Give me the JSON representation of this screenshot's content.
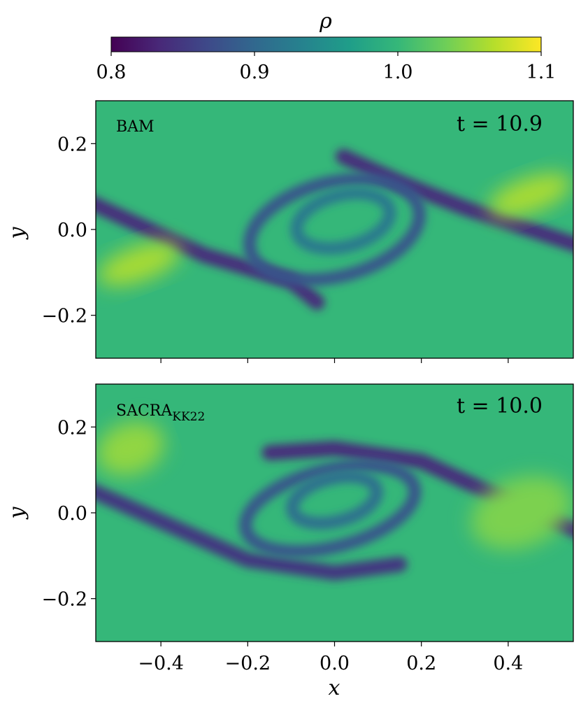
{
  "chart_data": {
    "type": "heatmap",
    "figure": "density field, two stacked panels sharing x-axis",
    "colorbar": {
      "label": "ρ",
      "colormap": "viridis",
      "range": [
        0.8,
        1.1
      ],
      "ticks": [
        0.8,
        0.9,
        1.0,
        1.1
      ],
      "tick_labels": [
        "0.8",
        "0.9",
        "1.0",
        "1.1"
      ],
      "stops": [
        "#440154",
        "#482878",
        "#3e4989",
        "#31688e",
        "#26828e",
        "#1f9e89",
        "#35b779",
        "#6ece58",
        "#b5de2b",
        "#fde725"
      ]
    },
    "xaxis": {
      "label": "x",
      "range": [
        -0.55,
        0.55
      ],
      "ticks": [
        -0.4,
        -0.2,
        0.0,
        0.2,
        0.4
      ],
      "tick_labels": [
        "−0.4",
        "−0.2",
        "0.0",
        "0.2",
        "0.4"
      ]
    },
    "panels": [
      {
        "label": "BAM",
        "label_sub": "",
        "time_text": "t = 10.9",
        "ylabel": "y",
        "ylim": [
          -0.3,
          0.3
        ],
        "yticks": [
          -0.2,
          0.0,
          0.2
        ],
        "ytick_labels": [
          "−0.2",
          "0.0",
          "0.2"
        ],
        "background_rho": 1.0,
        "features": [
          {
            "type": "band",
            "points": [
              [
                -0.6,
                0.08
              ],
              [
                -0.3,
                -0.06
              ],
              [
                -0.1,
                -0.12
              ],
              [
                -0.04,
                -0.17
              ]
            ],
            "rho": 0.84
          },
          {
            "type": "band",
            "points": [
              [
                0.02,
                0.17
              ],
              [
                0.15,
                0.11
              ],
              [
                0.3,
                0.05
              ],
              [
                0.6,
                -0.05
              ]
            ],
            "rho": 0.84
          },
          {
            "type": "ring",
            "cx": 0.0,
            "cy": 0.0,
            "rx": 0.2,
            "ry": 0.11,
            "rho": 0.88
          },
          {
            "type": "ring",
            "cx": 0.02,
            "cy": 0.02,
            "rx": 0.11,
            "ry": 0.06,
            "rho": 0.92
          },
          {
            "type": "blob",
            "cx": -0.45,
            "cy": -0.08,
            "rx": 0.1,
            "ry": 0.04,
            "rho": 1.06
          },
          {
            "type": "blob",
            "cx": 0.45,
            "cy": 0.08,
            "rx": 0.1,
            "ry": 0.04,
            "rho": 1.06
          }
        ]
      },
      {
        "label": "SACRA",
        "label_sub": "KK22",
        "time_text": "t = 10.0",
        "ylabel": "y",
        "ylim": [
          -0.3,
          0.3
        ],
        "yticks": [
          -0.2,
          0.0,
          0.2
        ],
        "ytick_labels": [
          "−0.2",
          "0.0",
          "0.2"
        ],
        "background_rho": 1.0,
        "features": [
          {
            "type": "band",
            "points": [
              [
                -0.6,
                0.07
              ],
              [
                -0.4,
                -0.02
              ],
              [
                -0.2,
                -0.11
              ],
              [
                0.0,
                -0.14
              ],
              [
                0.15,
                -0.12
              ]
            ],
            "rho": 0.85
          },
          {
            "type": "band",
            "points": [
              [
                -0.15,
                0.14
              ],
              [
                0.0,
                0.15
              ],
              [
                0.2,
                0.12
              ],
              [
                0.35,
                0.05
              ],
              [
                0.6,
                -0.06
              ]
            ],
            "rho": 0.84
          },
          {
            "type": "ring",
            "cx": -0.01,
            "cy": 0.01,
            "rx": 0.2,
            "ry": 0.09,
            "rho": 0.88
          },
          {
            "type": "ring",
            "cx": 0.0,
            "cy": 0.03,
            "rx": 0.1,
            "ry": 0.05,
            "rho": 0.91
          },
          {
            "type": "blob",
            "cx": -0.47,
            "cy": 0.15,
            "rx": 0.08,
            "ry": 0.06,
            "rho": 1.05
          },
          {
            "type": "blob",
            "cx": 0.43,
            "cy": 0.0,
            "rx": 0.12,
            "ry": 0.08,
            "rho": 1.04
          }
        ]
      }
    ]
  }
}
